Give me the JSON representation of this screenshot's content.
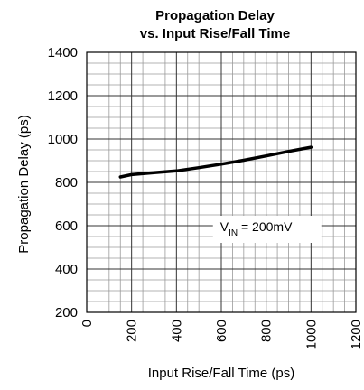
{
  "chart_data": {
    "type": "line",
    "title": "Propagation Delay",
    "subtitle": "vs. Input Rise/Fall Time",
    "xlabel": "Input Rise/Fall Time (ps)",
    "ylabel": "Propagation Delay (ps)",
    "xlim": [
      0,
      1200
    ],
    "ylim": [
      200,
      1400
    ],
    "xticks": [
      "0",
      "200",
      "400",
      "600",
      "800",
      "1000",
      "1200"
    ],
    "yticks": [
      "200",
      "400",
      "600",
      "800",
      "1000",
      "1200",
      "1400"
    ],
    "grid": true,
    "series": [
      {
        "x": [
          150,
          200,
          300,
          400,
          500,
          600,
          700,
          800,
          900,
          1000
        ],
        "y": [
          825,
          836,
          845,
          853,
          868,
          884,
          902,
          922,
          943,
          962
        ]
      }
    ],
    "annotation": {
      "prefix": "V",
      "sub": "IN",
      "suffix": " = 200mV"
    }
  }
}
